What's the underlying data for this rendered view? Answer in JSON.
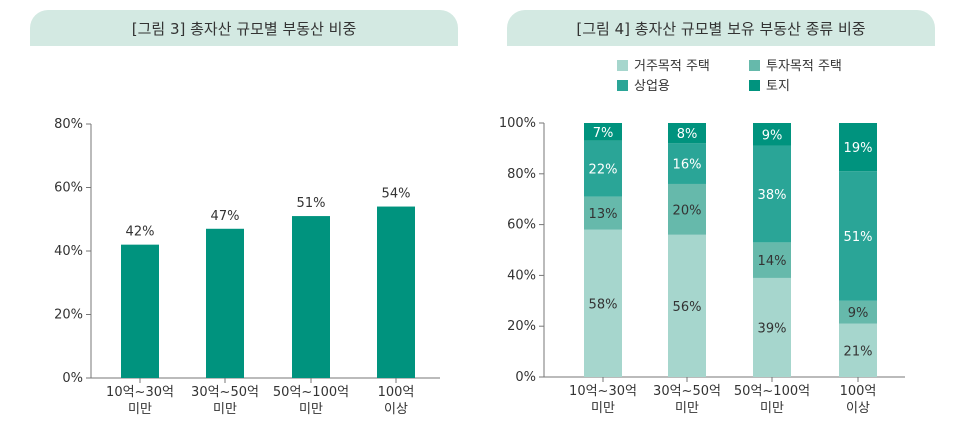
{
  "left_title": "[그림 3] 총자산 규모별 부동산 비중",
  "right_title": "[그림 4] 총자산 규모별 보유 부동산 종류 비중",
  "colors": {
    "banner": "#d3e9e2",
    "bar": "#00937e",
    "residential": "#a6d6cd",
    "investment": "#66b9ab",
    "commercial": "#2aa597",
    "land": "#00937e"
  },
  "chart_data": [
    {
      "type": "bar",
      "title": "[그림 3] 총자산 규모별 부동산 비중",
      "categories": [
        [
          "10억~30억",
          "미만"
        ],
        [
          "30억~50억",
          "미만"
        ],
        [
          "50억~100억",
          "미만"
        ],
        [
          "100억",
          "이상"
        ]
      ],
      "values": [
        42,
        47,
        51,
        54
      ],
      "value_labels": [
        "42%",
        "47%",
        "51%",
        "54%"
      ],
      "ylim": [
        0,
        80
      ],
      "yticks": [
        "0%",
        "20%",
        "40%",
        "60%",
        "80%"
      ],
      "xlabel": "",
      "ylabel": ""
    },
    {
      "type": "bar",
      "stacked": true,
      "title": "[그림 4] 총자산 규모별 보유 부동산 종류 비중",
      "categories": [
        [
          "10억~30억",
          "미만"
        ],
        [
          "30억~50억",
          "미만"
        ],
        [
          "50억~100억",
          "미만"
        ],
        [
          "100억",
          "이상"
        ]
      ],
      "series": [
        {
          "name": "거주목적 주택",
          "values": [
            58,
            56,
            39,
            21
          ],
          "labels": [
            "58%",
            "56%",
            "39%",
            "21%"
          ]
        },
        {
          "name": "투자목적 주택",
          "values": [
            13,
            20,
            14,
            9
          ],
          "labels": [
            "13%",
            "20%",
            "14%",
            "9%"
          ]
        },
        {
          "name": "상업용",
          "values": [
            22,
            16,
            38,
            51
          ],
          "labels": [
            "22%",
            "16%",
            "38%",
            "51%"
          ]
        },
        {
          "name": "토지",
          "values": [
            7,
            8,
            9,
            19
          ],
          "labels": [
            "7%",
            "8%",
            "9%",
            "19%"
          ]
        }
      ],
      "ylim": [
        0,
        100
      ],
      "yticks": [
        "0%",
        "20%",
        "40%",
        "60%",
        "80%",
        "100%"
      ],
      "legend_position": "top"
    }
  ]
}
